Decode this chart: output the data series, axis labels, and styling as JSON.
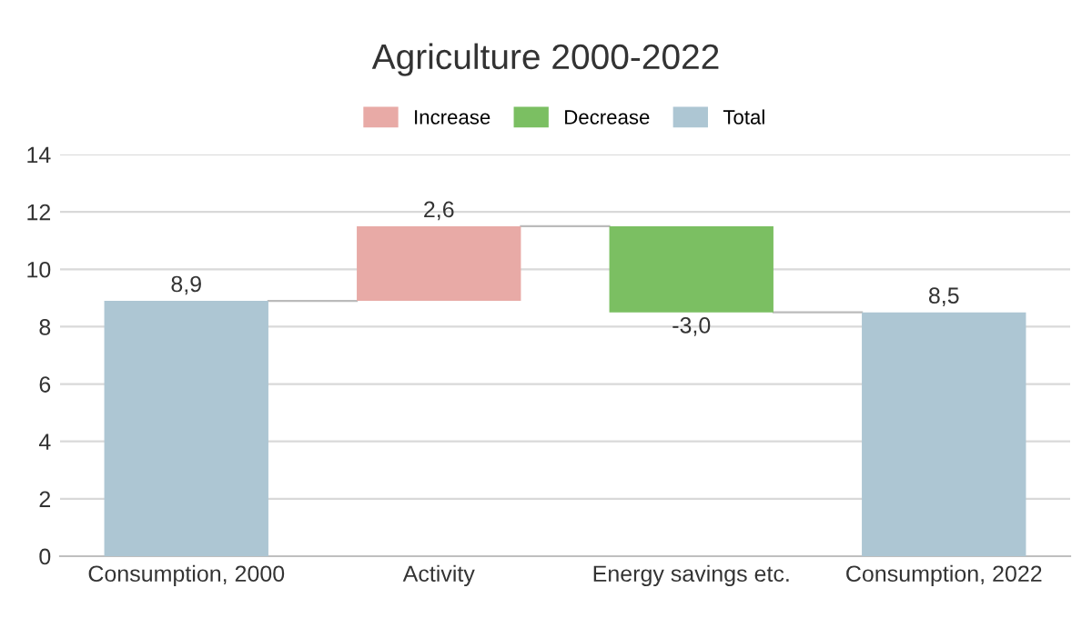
{
  "chart_data": {
    "type": "bar",
    "title": "Agriculture 2000-2022",
    "categories": [
      "Consumption, 2000",
      "Activity",
      "Energy savings etc.",
      "Consumption, 2022"
    ],
    "series": [
      {
        "name": "Increase",
        "color": "#e8aaa6",
        "values": [
          null,
          2.6,
          null,
          null
        ],
        "base": [
          null,
          8.9,
          null,
          null
        ],
        "value_labels": [
          null,
          "2,6",
          null,
          null
        ]
      },
      {
        "name": "Decrease",
        "color": "#7bbf62",
        "values": [
          null,
          null,
          -3.0,
          null
        ],
        "base": [
          null,
          null,
          11.5,
          null
        ],
        "value_labels": [
          null,
          null,
          "-3,0",
          null
        ]
      },
      {
        "name": "Total",
        "color": "#adc6d3",
        "values": [
          8.9,
          null,
          null,
          8.5
        ],
        "base": [
          0,
          null,
          null,
          0
        ],
        "value_labels": [
          "8,9",
          null,
          null,
          "8,5"
        ]
      }
    ],
    "ylim": [
      0,
      14
    ],
    "yticks": [
      0,
      2,
      4,
      6,
      8,
      10,
      12,
      14
    ],
    "grid": "y",
    "legend": "top"
  }
}
